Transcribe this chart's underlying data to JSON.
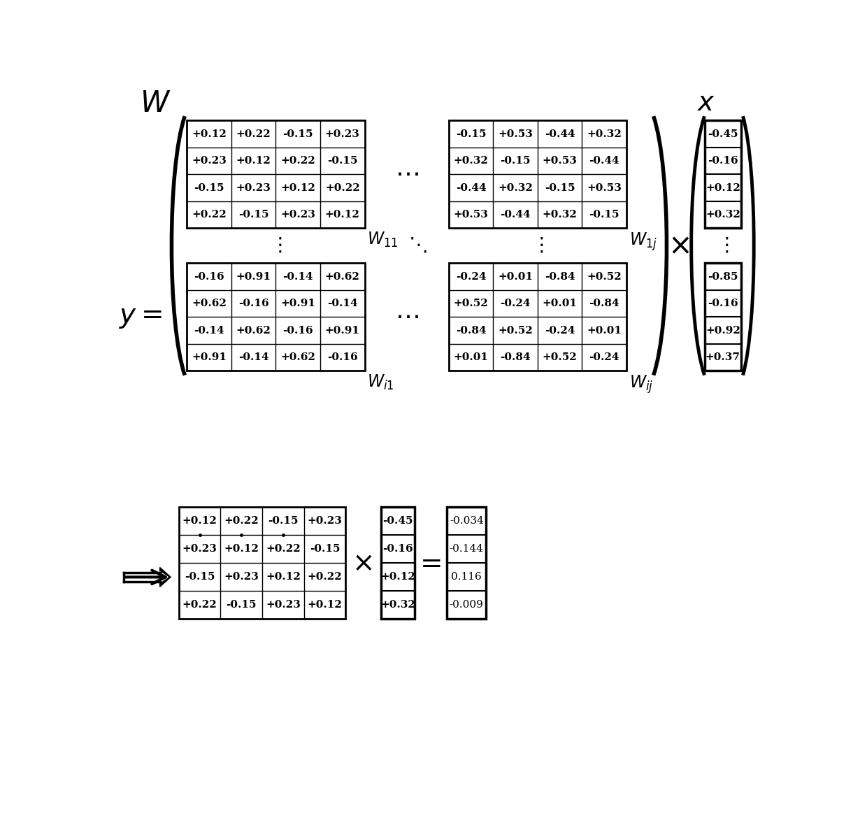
{
  "W11": [
    [
      "+0.12",
      "+0.22",
      "-0.15",
      "+0.23"
    ],
    [
      "+0.23",
      "+0.12",
      "+0.22",
      "-0.15"
    ],
    [
      "-0.15",
      "+0.23",
      "+0.12",
      "+0.22"
    ],
    [
      "+0.22",
      "-0.15",
      "+0.23",
      "+0.12"
    ]
  ],
  "W1j": [
    [
      "-0.15",
      "+0.53",
      "-0.44",
      "+0.32"
    ],
    [
      "+0.32",
      "-0.15",
      "+0.53",
      "-0.44"
    ],
    [
      "-0.44",
      "+0.32",
      "-0.15",
      "+0.53"
    ],
    [
      "+0.53",
      "-0.44",
      "+0.32",
      "-0.15"
    ]
  ],
  "Wi1": [
    [
      "-0.16",
      "+0.91",
      "-0.14",
      "+0.62"
    ],
    [
      "+0.62",
      "-0.16",
      "+0.91",
      "-0.14"
    ],
    [
      "-0.14",
      "+0.62",
      "-0.16",
      "+0.91"
    ],
    [
      "+0.91",
      "-0.14",
      "+0.62",
      "-0.16"
    ]
  ],
  "Wij": [
    [
      "-0.24",
      "+0.01",
      "-0.84",
      "+0.52"
    ],
    [
      "+0.52",
      "-0.24",
      "+0.01",
      "-0.84"
    ],
    [
      "-0.84",
      "+0.52",
      "-0.24",
      "+0.01"
    ],
    [
      "+0.01",
      "-0.84",
      "+0.52",
      "-0.24"
    ]
  ],
  "x_top": [
    "-0.45",
    "-0.16",
    "+0.12",
    "+0.32"
  ],
  "x_bot": [
    "-0.85",
    "-0.16",
    "+0.92",
    "+0.37"
  ],
  "bottom_W": [
    [
      "+0.12",
      "+0.22",
      "-0.15",
      "+0.23"
    ],
    [
      "+0.23",
      "+0.12",
      "+0.22",
      "-0.15"
    ],
    [
      "-0.15",
      "+0.23",
      "+0.12",
      "+0.22"
    ],
    [
      "+0.22",
      "-0.15",
      "+0.23",
      "+0.12"
    ]
  ],
  "bottom_x": [
    "-0.45",
    "-0.16",
    "+0.12",
    "+0.32"
  ],
  "bottom_result": [
    "-0.034",
    "-0.144",
    "0.116",
    "-0.009"
  ],
  "W_label": "$W$",
  "y_label": "$y=$",
  "x_label": "$x$",
  "W11_label": "$W_{11}$",
  "W1j_label": "$W_{1j}$",
  "Wi1_label": "$W_{i1}$",
  "Wij_label": "$W_{ij}$"
}
